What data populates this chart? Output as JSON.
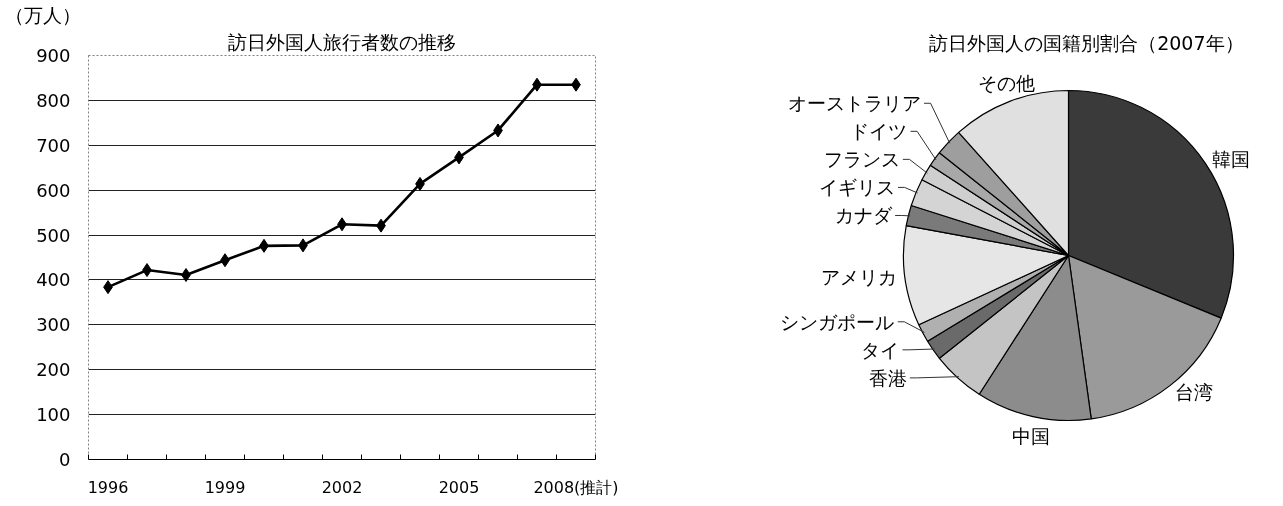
{
  "chart_data": [
    {
      "type": "line",
      "title": "訪日外国人旅行者数の推移",
      "ylabel": "（万人）",
      "categories": [
        "1996",
        null,
        null,
        "1999",
        null,
        null,
        "2002",
        null,
        null,
        "2005",
        null,
        null,
        "2008(推計)"
      ],
      "series": [
        {
          "color": "#000000",
          "values": [
            384,
            422,
            411,
            444,
            476,
            477,
            524,
            521,
            614,
            673,
            733,
            835,
            835
          ]
        }
      ],
      "ylim": [
        0,
        900
      ],
      "yticks": [
        0,
        100,
        200,
        300,
        400,
        500,
        600,
        700,
        800,
        900
      ],
      "grid": "y",
      "marker": "diamond",
      "line_style": "solid"
    },
    {
      "type": "pie",
      "title": "訪日外国人の国籍別割合（2007年）",
      "categories": [
        "韓国",
        "台湾",
        "中国",
        "香港",
        "タイ",
        "シンガポール",
        "アメリカ",
        "カナダ",
        "イギリス",
        "フランス",
        "ドイツ",
        "オーストラリア",
        "その他"
      ],
      "values": [
        31.2,
        16.6,
        11.3,
        5.2,
        2.0,
        1.8,
        9.8,
        2.0,
        2.7,
        1.6,
        1.5,
        2.7,
        11.6
      ],
      "colors": [
        "#3a3a3a",
        "#9a9a9a",
        "#8c8c8c",
        "#c4c4c4",
        "#6a6a6a",
        "#b0b0b0",
        "#e6e6e6",
        "#7a7a7a",
        "#d4d4d4",
        "#cfcfcf",
        "#a8a8a8",
        "#9e9e9e",
        "#e0e0e0"
      ]
    }
  ]
}
